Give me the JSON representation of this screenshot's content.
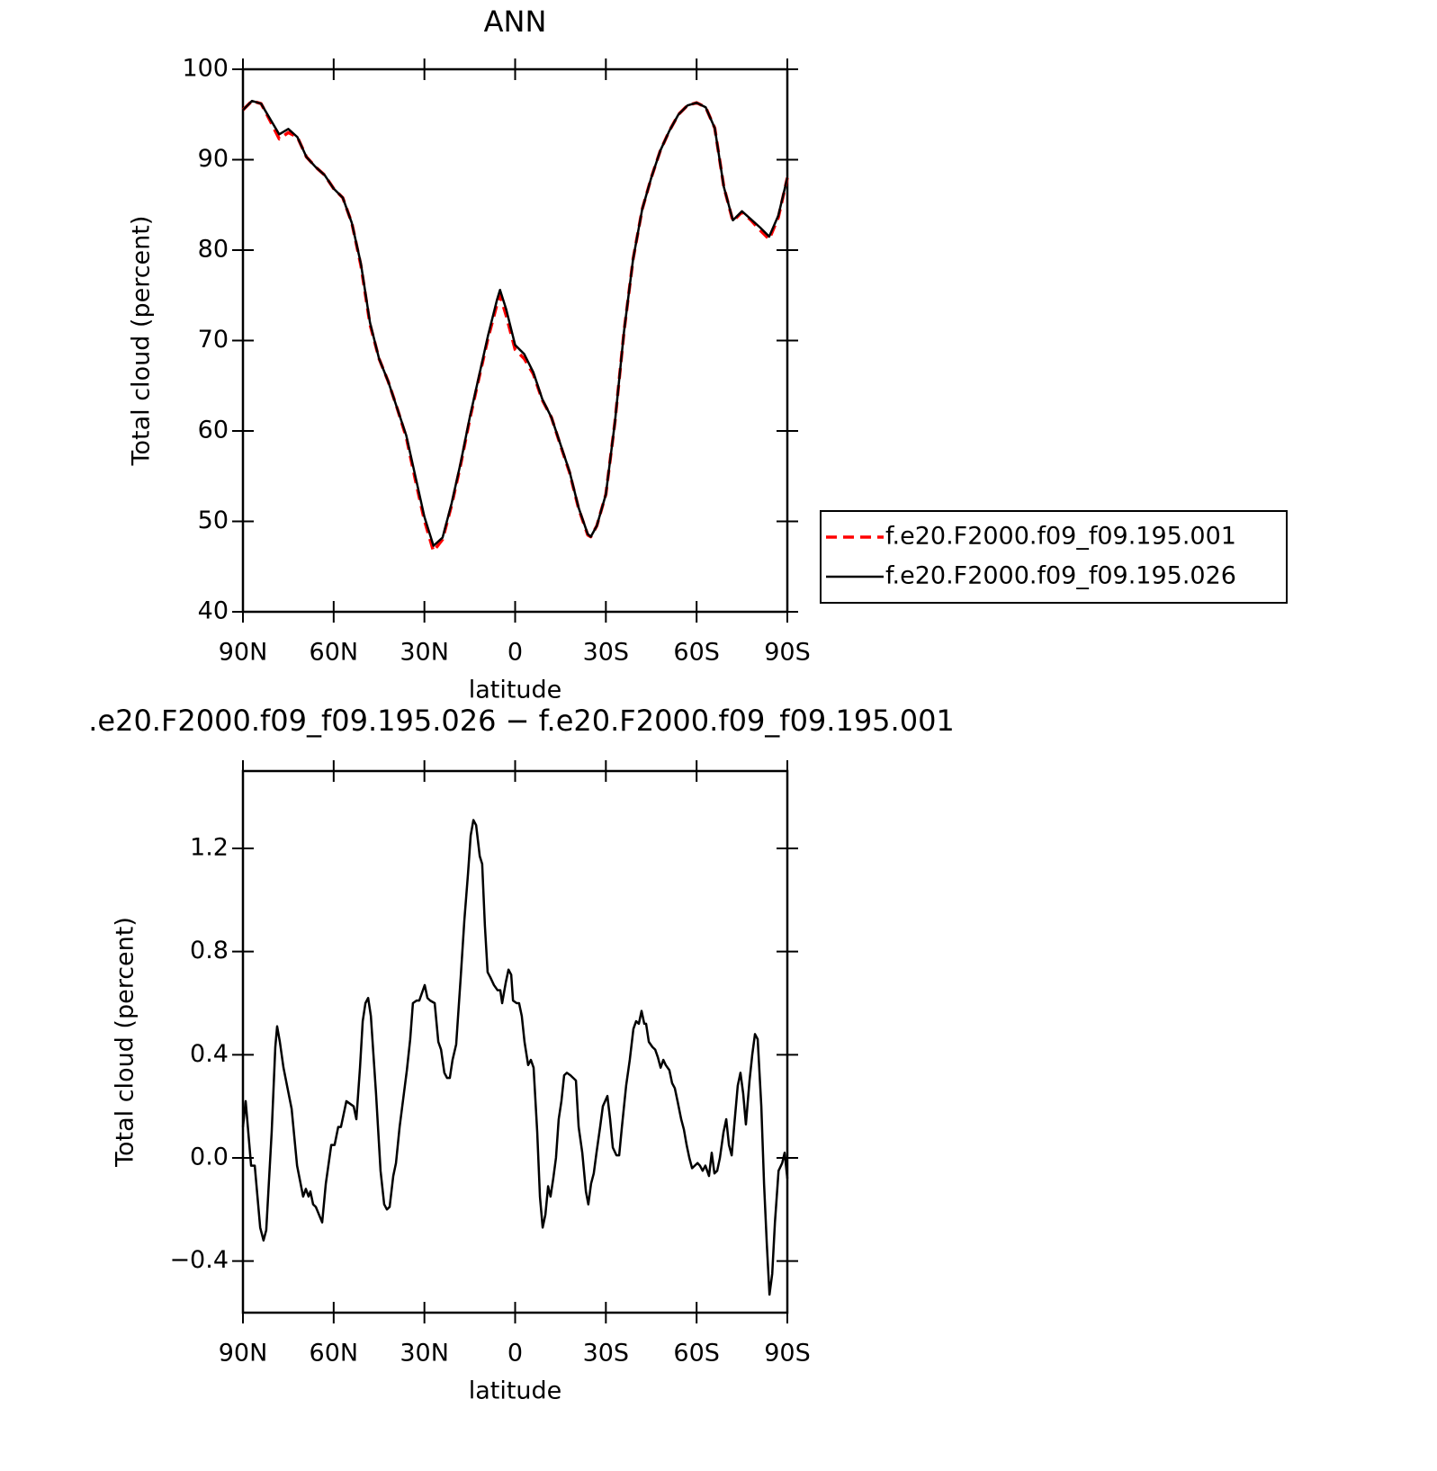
{
  "chart_data": [
    {
      "type": "line",
      "title": "ANN",
      "xlabel": "latitude",
      "ylabel": "Total cloud (percent)",
      "xlim": [
        90,
        -90
      ],
      "xticks": [
        {
          "value": 90,
          "label": "90N"
        },
        {
          "value": 60,
          "label": "60N"
        },
        {
          "value": 30,
          "label": "30N"
        },
        0,
        {
          "value": -30,
          "label": "30S"
        },
        {
          "value": -60,
          "label": "60S"
        },
        {
          "value": -90,
          "label": "90S"
        }
      ],
      "ylim": [
        40,
        100
      ],
      "yticks": [
        40,
        50,
        60,
        70,
        80,
        90,
        100
      ],
      "legend": "right",
      "x": [
        90,
        87,
        84,
        81,
        78,
        75,
        72,
        69,
        66,
        63,
        60,
        57,
        54,
        51,
        48,
        45,
        42,
        39,
        36,
        33,
        30,
        27,
        24,
        21,
        18,
        15,
        12,
        9,
        6,
        5,
        3,
        0,
        -3,
        -6,
        -9,
        -12,
        -15,
        -18,
        -21,
        -24,
        -25,
        -27,
        -30,
        -33,
        -36,
        -39,
        -42,
        -45,
        -48,
        -51,
        -54,
        -57,
        -60,
        -63,
        -66,
        -69,
        -72,
        -75,
        -78,
        -81,
        -84,
        -87,
        -90
      ],
      "series": [
        {
          "name": "f.e20.F2000.f09_f09.195.001",
          "color": "#ff0000",
          "dash": true,
          "values": [
            95.5,
            96.5,
            96.2,
            94.3,
            92.3,
            93.0,
            92.5,
            90.3,
            89.2,
            88.3,
            86.8,
            85.8,
            83,
            78.3,
            71.8,
            68,
            65.5,
            62.5,
            59.3,
            54.6,
            50.1,
            46.7,
            48.0,
            51.8,
            56.3,
            61.3,
            65.8,
            70.2,
            74.0,
            75.0,
            72.8,
            69.0,
            68.0,
            66.3,
            63.4,
            61.5,
            58.4,
            55.4,
            51.4,
            48.5,
            48.3,
            49.5,
            53,
            61,
            71,
            79,
            84.5,
            88,
            91,
            93.2,
            95,
            96,
            96.3,
            95.8,
            93.5,
            87,
            83.2,
            84.2,
            83.3,
            82.2,
            81.2,
            83.6,
            88
          ]
        },
        {
          "name": "f.e20.F2000.f09_f09.195.026",
          "color": "#000000",
          "dash": false,
          "values": [
            95.5,
            96.5,
            96.2,
            94.5,
            92.8,
            93.4,
            92.5,
            90.3,
            89.2,
            88.3,
            86.8,
            85.8,
            83,
            78.5,
            72,
            68,
            65.5,
            62.5,
            59.5,
            55,
            50.5,
            47.3,
            48.2,
            52,
            56.5,
            61.5,
            66,
            70.5,
            74.5,
            75.6,
            73.5,
            69.5,
            68.5,
            66.5,
            63.5,
            61.5,
            58.5,
            55.5,
            51.5,
            48.6,
            48.3,
            49.5,
            53,
            61,
            71,
            79,
            84.5,
            88,
            91,
            93.2,
            95,
            96,
            96.3,
            95.8,
            93.5,
            87,
            83.3,
            84.3,
            83.4,
            82.5,
            81.5,
            83.8,
            88
          ]
        }
      ]
    },
    {
      "type": "line",
      "title": ".e20.F2000.f09_f09.195.026 − f.e20.F2000.f09_f09.195.001",
      "xlabel": "latitude",
      "ylabel": "Total cloud (percent)",
      "xlim": [
        90,
        -90
      ],
      "xticks": [
        {
          "value": 90,
          "label": "90N"
        },
        {
          "value": 60,
          "label": "60N"
        },
        {
          "value": 30,
          "label": "30N"
        },
        0,
        {
          "value": -30,
          "label": "30S"
        },
        {
          "value": -60,
          "label": "60S"
        },
        {
          "value": -90,
          "label": "90S"
        }
      ],
      "ylim": [
        -0.6,
        1.5
      ],
      "yticks": [
        {
          "value": -0.4,
          "label": "−0.4"
        },
        {
          "value": 0,
          "label": "0.0"
        },
        0.4,
        0.8,
        1.2
      ],
      "x": [
        90,
        89.1,
        87.3,
        86.1,
        84.3,
        83.2,
        82.3,
        80.5,
        79.3,
        78.7,
        77.8,
        76.6,
        73.9,
        72.1,
        70.1,
        69.2,
        68.3,
        67.7,
        66.8,
        65.9,
        63.8,
        62.6,
        60.8,
        59.7,
        58.5,
        57.6,
        55.8,
        54.6,
        53.4,
        52.5,
        51.3,
        50.4,
        49.5,
        48.6,
        47.7,
        46.0,
        44.5,
        43.3,
        42.4,
        41.5,
        40.3,
        39.4,
        38.2,
        35.8,
        34.7,
        33.8,
        32.6,
        31.7,
        30.8,
        29.9,
        29.0,
        28.1,
        26.6,
        25.4,
        24.5,
        23.4,
        22.5,
        21.6,
        20.7,
        19.5,
        18.0,
        16.8,
        15.6,
        14.7,
        13.8,
        12.9,
        11.7,
        10.9,
        10.0,
        9.1,
        8.2,
        7.0,
        5.8,
        4.9,
        4.3,
        3.1,
        2.2,
        1.3,
        0.7,
        -0.5,
        -1.3,
        -2.2,
        -3.1,
        -4.3,
        -5.2,
        -6.1,
        -7.3,
        -8.2,
        -9.1,
        -10.0,
        -10.9,
        -11.7,
        -12.6,
        -13.5,
        -14.4,
        -15.3,
        -16.2,
        -17.1,
        -18.3,
        -20.1,
        -21.0,
        -22.2,
        -23.4,
        -24.2,
        -25.1,
        -26.0,
        -26.9,
        -28.1,
        -29.0,
        -30.5,
        -31.4,
        -32.3,
        -33.5,
        -34.4,
        -35.3,
        -36.7,
        -37.9,
        -39.1,
        -40.0,
        -40.9,
        -41.8,
        -42.7,
        -43.3,
        -44.2,
        -45.4,
        -46.3,
        -47.2,
        -48.1,
        -49.0,
        -49.8,
        -51.0,
        -51.9,
        -52.8,
        -53.7,
        -54.9,
        -55.8,
        -56.7,
        -57.6,
        -58.5,
        -59.4,
        -60.3,
        -61.1,
        -62.0,
        -62.9,
        -64.1,
        -65.0,
        -65.9,
        -66.8,
        -67.7,
        -68.9,
        -69.8,
        -70.7,
        -71.6,
        -72.4,
        -73.6,
        -74.5,
        -75.4,
        -76.3,
        -77.5,
        -78.4,
        -79.3,
        -80.2,
        -81.4,
        -82.3,
        -83.2,
        -84.1,
        -85.0,
        -85.9,
        -87.1,
        -88.3,
        -89.1,
        -90.0
      ],
      "series": [
        {
          "color": "#000000",
          "dash": false,
          "values": [
            0.12,
            0.22,
            -0.03,
            -0.03,
            -0.27,
            -0.32,
            -0.28,
            0.1,
            0.43,
            0.51,
            0.45,
            0.35,
            0.19,
            -0.03,
            -0.15,
            -0.12,
            -0.15,
            -0.13,
            -0.18,
            -0.19,
            -0.25,
            -0.1,
            0.05,
            0.05,
            0.12,
            0.12,
            0.22,
            0.21,
            0.2,
            0.15,
            0.35,
            0.53,
            0.6,
            0.62,
            0.55,
            0.25,
            -0.05,
            -0.18,
            -0.2,
            -0.19,
            -0.07,
            -0.02,
            0.12,
            0.34,
            0.46,
            0.6,
            0.61,
            0.61,
            0.64,
            0.67,
            0.62,
            0.61,
            0.6,
            0.45,
            0.42,
            0.33,
            0.31,
            0.31,
            0.38,
            0.44,
            0.7,
            0.92,
            1.1,
            1.25,
            1.31,
            1.29,
            1.17,
            1.14,
            0.9,
            0.72,
            0.7,
            0.67,
            0.65,
            0.65,
            0.6,
            0.68,
            0.73,
            0.71,
            0.61,
            0.6,
            0.6,
            0.55,
            0.45,
            0.36,
            0.38,
            0.35,
            0.1,
            -0.15,
            -0.27,
            -0.22,
            -0.11,
            -0.15,
            -0.08,
            0.0,
            0.15,
            0.22,
            0.32,
            0.33,
            0.32,
            0.3,
            0.12,
            0.02,
            -0.13,
            -0.18,
            -0.1,
            -0.06,
            0.02,
            0.12,
            0.2,
            0.24,
            0.15,
            0.04,
            0.01,
            0.01,
            0.12,
            0.28,
            0.38,
            0.5,
            0.53,
            0.52,
            0.57,
            0.52,
            0.52,
            0.45,
            0.43,
            0.42,
            0.39,
            0.35,
            0.38,
            0.36,
            0.34,
            0.29,
            0.27,
            0.22,
            0.15,
            0.11,
            0.05,
            0.0,
            -0.04,
            -0.03,
            -0.02,
            -0.03,
            -0.05,
            -0.03,
            -0.07,
            0.02,
            -0.06,
            -0.05,
            0.0,
            0.1,
            0.15,
            0.05,
            0.01,
            0.12,
            0.28,
            0.33,
            0.25,
            0.13,
            0.3,
            0.4,
            0.48,
            0.46,
            0.2,
            -0.1,
            -0.33,
            -0.53,
            -0.45,
            -0.25,
            -0.05,
            -0.02,
            0.02,
            -0.08
          ]
        }
      ]
    }
  ]
}
